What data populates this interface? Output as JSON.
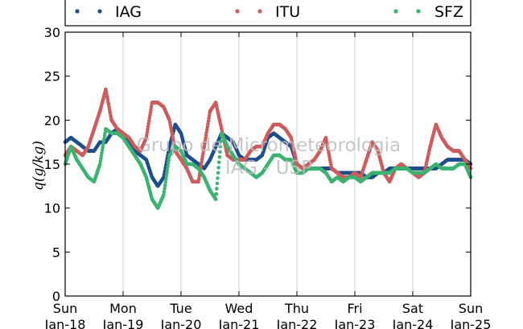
{
  "chart_data": {
    "type": "scatter",
    "ylabel": "q(g/kg)",
    "ylim": [
      0,
      30
    ],
    "yticks": [
      0,
      5,
      10,
      15,
      20,
      25,
      30
    ],
    "xlim": [
      0,
      7
    ],
    "xticks": [
      {
        "x": 0,
        "day": "Sun",
        "date": "Jan-18"
      },
      {
        "x": 1,
        "day": "Mon",
        "date": "Jan-19"
      },
      {
        "x": 2,
        "day": "Tue",
        "date": "Jan-20"
      },
      {
        "x": 3,
        "day": "Wed",
        "date": "Jan-21"
      },
      {
        "x": 4,
        "day": "Thu",
        "date": "Jan-22"
      },
      {
        "x": 5,
        "day": "Fri",
        "date": "Jan-23"
      },
      {
        "x": 6,
        "day": "Sat",
        "date": "Jan-24"
      },
      {
        "x": 7,
        "day": "Sun",
        "date": "Jan-25"
      }
    ],
    "grid": "vertical",
    "legend_position": "top",
    "watermark": [
      "Grupo de Micrometeorologia",
      "IAG - USP"
    ],
    "series": [
      {
        "name": "IAG",
        "color": "#1f4e8c",
        "x": [
          0,
          0.1,
          0.2,
          0.3,
          0.4,
          0.5,
          0.6,
          0.7,
          0.8,
          0.9,
          1.0,
          1.1,
          1.2,
          1.3,
          1.4,
          1.5,
          1.6,
          1.7,
          1.8,
          1.9,
          2.0,
          2.1,
          2.2,
          2.3,
          2.4,
          2.5,
          2.6,
          2.7,
          2.8,
          2.9,
          3.0,
          3.1,
          3.2,
          3.3,
          3.4,
          3.5,
          3.6,
          3.7,
          3.8,
          3.9,
          4.0,
          4.1,
          4.2,
          4.3,
          4.4,
          4.5,
          4.6,
          4.7,
          4.8,
          4.9,
          5.0,
          5.1,
          5.2,
          5.3,
          5.4,
          5.5,
          5.6,
          5.7,
          5.8,
          5.9,
          6.0,
          6.1,
          6.2,
          6.3,
          6.4,
          6.5,
          6.6,
          6.7,
          6.8,
          6.9,
          7.0
        ],
        "y": [
          17.5,
          18,
          17.5,
          17,
          16.5,
          16.5,
          17.5,
          17.5,
          18.5,
          19,
          18.5,
          17.5,
          16.5,
          16,
          15.5,
          13.5,
          12.5,
          13.5,
          17,
          19.5,
          18.5,
          16,
          15.5,
          15,
          14.5,
          15.5,
          17,
          18.5,
          18,
          17.5,
          16,
          15.5,
          15.5,
          15.5,
          16,
          18,
          18.5,
          18,
          17.5,
          17,
          15,
          14.5,
          14.5,
          14.5,
          14.5,
          14.5,
          14.5,
          14,
          14,
          14,
          14,
          14,
          13.5,
          13.5,
          14,
          14,
          14.5,
          14.5,
          14.5,
          14.5,
          14.5,
          14.5,
          14.5,
          14.5,
          14.5,
          15,
          15.5,
          15.5,
          15.5,
          15.5,
          15
        ]
      },
      {
        "name": "ITU",
        "color": "#cd5c5c",
        "x": [
          0,
          0.1,
          0.2,
          0.3,
          0.4,
          0.5,
          0.6,
          0.7,
          0.8,
          0.9,
          1.0,
          1.1,
          1.2,
          1.3,
          1.4,
          1.5,
          1.6,
          1.7,
          1.8,
          1.9,
          2.0,
          2.1,
          2.2,
          2.3,
          2.4,
          2.5,
          2.6,
          2.7,
          2.8,
          2.9,
          3.0,
          3.1,
          3.2,
          3.3,
          3.4,
          3.5,
          3.6,
          3.7,
          3.8,
          3.9,
          4.0,
          4.1,
          4.2,
          4.3,
          4.4,
          4.5,
          4.6,
          4.7,
          4.8,
          4.9,
          5.0,
          5.1,
          5.2,
          5.3,
          5.4,
          5.5,
          5.6,
          5.7,
          5.8,
          5.9,
          6.0,
          6.1,
          6.2,
          6.3,
          6.4,
          6.5,
          6.6,
          6.7,
          6.8,
          6.9,
          7.0
        ],
        "y": [
          16,
          17,
          16.5,
          16,
          17,
          19,
          21,
          23.5,
          20,
          19,
          18.5,
          18,
          17,
          16.5,
          18,
          22,
          22,
          21.5,
          20,
          16.5,
          15.5,
          14.5,
          13,
          13,
          17,
          21,
          22,
          19,
          16,
          15.5,
          15.5,
          15.5,
          16.5,
          17,
          17,
          18.5,
          19.5,
          19.5,
          19,
          18,
          15,
          14.5,
          15,
          15.5,
          16.5,
          18,
          14.5,
          14,
          13.5,
          13.5,
          14,
          13.5,
          15.5,
          17.5,
          16.5,
          14,
          13,
          14.5,
          15,
          14.5,
          14,
          13.5,
          14,
          17,
          19.5,
          18,
          17,
          16.5,
          16.5,
          15.5,
          14.5
        ]
      },
      {
        "name": "SFZ",
        "color": "#3cb371",
        "x": [
          0,
          0.1,
          0.2,
          0.3,
          0.4,
          0.5,
          0.6,
          0.7,
          0.8,
          0.9,
          1.0,
          1.1,
          1.2,
          1.3,
          1.4,
          1.5,
          1.6,
          1.7,
          1.8,
          1.9,
          2.0,
          2.1,
          2.2,
          2.3,
          2.4,
          2.5,
          2.6,
          2.7,
          2.8,
          2.9,
          3.0,
          3.1,
          3.2,
          3.3,
          3.4,
          3.5,
          3.6,
          3.7,
          3.8,
          3.9,
          4.0,
          4.1,
          4.2,
          4.3,
          4.4,
          4.5,
          4.6,
          4.7,
          4.8,
          4.9,
          5.0,
          5.1,
          5.2,
          5.3,
          5.4,
          5.5,
          5.6,
          5.7,
          5.8,
          5.9,
          6.0,
          6.1,
          6.2,
          6.3,
          6.4,
          6.5,
          6.6,
          6.7,
          6.8,
          6.9,
          7.0
        ],
        "y": [
          15,
          17,
          15.5,
          14.5,
          13.5,
          13,
          15,
          19,
          18.5,
          18.5,
          18,
          17,
          16,
          15,
          13.5,
          11,
          10,
          11.5,
          16,
          17,
          16.5,
          15,
          15,
          14.5,
          13.5,
          12,
          11,
          18.5,
          17,
          16,
          15,
          14.5,
          14,
          13.5,
          14,
          15,
          16,
          16,
          15.5,
          15.5,
          14,
          14,
          14.5,
          14.5,
          14.5,
          14,
          13,
          13.5,
          13,
          13.5,
          13.5,
          13,
          13.5,
          14,
          14,
          14,
          14,
          14.5,
          14.5,
          14.5,
          14,
          14,
          14,
          14.5,
          15,
          14.5,
          14.5,
          14.5,
          15,
          15,
          13.5
        ]
      }
    ]
  }
}
